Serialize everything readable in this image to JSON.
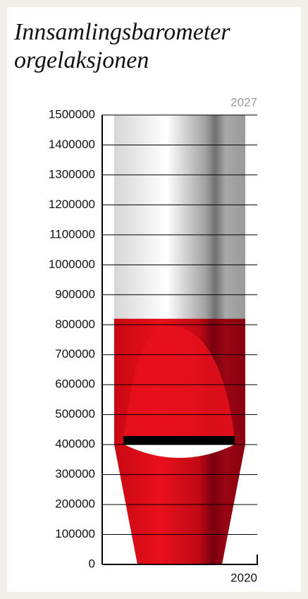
{
  "chart_data": {
    "type": "barometer",
    "title": "Innsamlingsbarometer orgelaksjonen",
    "value": 820000,
    "ylim": [
      0,
      1500000
    ],
    "yticks": [
      0,
      100000,
      200000,
      300000,
      400000,
      500000,
      600000,
      700000,
      800000,
      900000,
      1000000,
      1100000,
      1200000,
      1300000,
      1400000,
      1500000
    ],
    "top_label": "2027",
    "bottom_label": "2020",
    "color": "#e3101b",
    "empty_color": "#d9d9d9",
    "grid": true
  }
}
